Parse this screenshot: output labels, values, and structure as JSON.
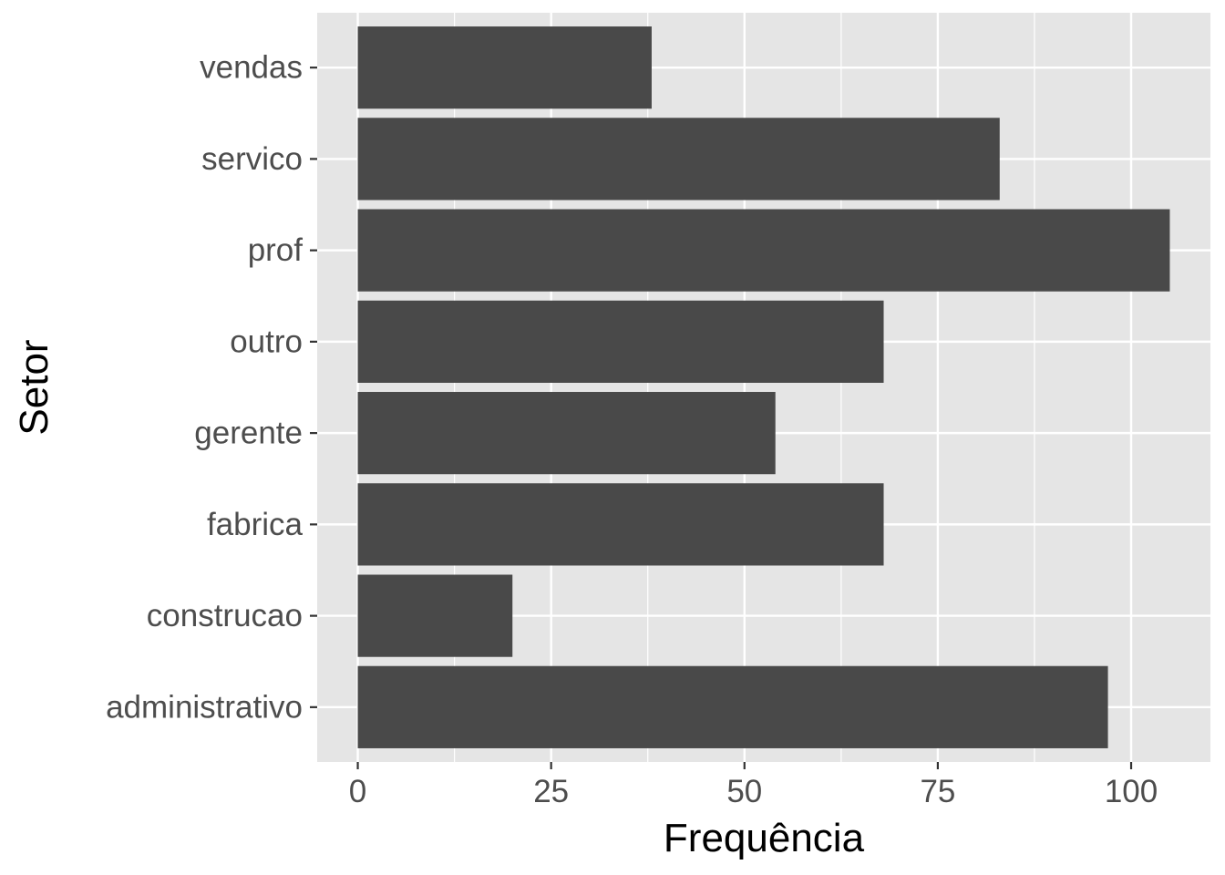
{
  "chart_data": {
    "type": "bar",
    "orientation": "horizontal",
    "title": "",
    "xlabel": "Frequência",
    "ylabel": "Setor",
    "categories": [
      "administrativo",
      "construcao",
      "fabrica",
      "gerente",
      "outro",
      "prof",
      "servico",
      "vendas"
    ],
    "values": [
      97,
      20,
      68,
      54,
      68,
      105,
      83,
      38
    ],
    "xlim": [
      -5.25,
      110.25
    ],
    "x_ticks": [
      0,
      25,
      50,
      75,
      100
    ],
    "x_tick_labels": [
      "0",
      "25",
      "50",
      "75",
      "100"
    ],
    "grid": true,
    "legend": "none",
    "colors": {
      "bar": "#494949",
      "panel": "#e5e5e5",
      "grid": "#ffffff",
      "tick_text": "#4d4d4d",
      "tick_mark": "#333333"
    }
  }
}
